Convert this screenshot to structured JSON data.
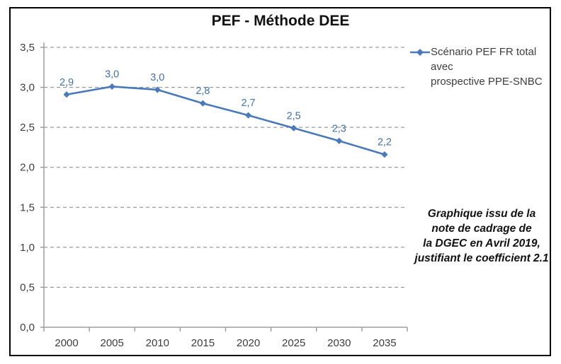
{
  "page": {
    "title": "PEF - Méthode DEE"
  },
  "legend": {
    "label": "Scénario PEF FR total avec\nprospective PPE-SNBC",
    "marker_icon": "line-diamond-icon"
  },
  "annotation": {
    "text": "Graphique issu de la\nnote de cadrage de\nla DGEC en Avril 2019,\njustifiant le coefficient 2.1"
  },
  "colors": {
    "series": "#4a7aba",
    "data_label": "#4472a8",
    "grid": "#858585",
    "axis": "#9d9d9d",
    "tick_label": "#3d3d3d",
    "title": "#111111",
    "frame_border": "#000000"
  },
  "chart_data": {
    "type": "line",
    "title": "PEF - Méthode DEE",
    "categories": [
      "2000",
      "2005",
      "2010",
      "2015",
      "2020",
      "2025",
      "2030",
      "2035"
    ],
    "series": [
      {
        "name": "Scénario PEF FR total avec prospective PPE-SNBC",
        "values": [
          2.91,
          3.01,
          2.97,
          2.8,
          2.65,
          2.49,
          2.33,
          2.16
        ],
        "point_labels": [
          "2,9",
          "3,0",
          "3,0",
          "2,8",
          "2,7",
          "2,5",
          "2,3",
          "2,2"
        ],
        "color": "#4a7aba",
        "marker": "diamond"
      }
    ],
    "xlabel": "",
    "ylabel": "",
    "ylim": [
      0,
      3.5
    ],
    "ytick_step": 0.5,
    "ytick_labels": [
      "0,0",
      "0,5",
      "1,0",
      "1,5",
      "2,0",
      "2,5",
      "3,0",
      "3,5"
    ],
    "grid": "horizontal-dashed",
    "legend_position": "top-right",
    "annotation": "Graphique issu de la note de cadrage de la DGEC en Avril 2019, justifiant le coefficient 2.1"
  }
}
